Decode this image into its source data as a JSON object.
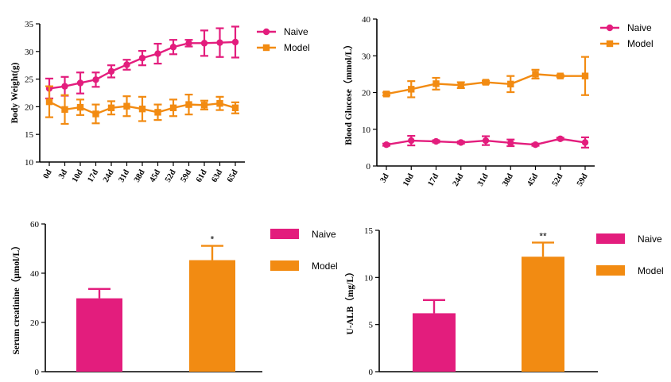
{
  "colors": {
    "naive": "#e31d7d",
    "model": "#f28b12"
  },
  "chart_data": [
    {
      "id": "body-weight",
      "type": "line",
      "title": "",
      "xlabel": "",
      "ylabel": "Body Weight(g)",
      "ylim": [
        10,
        35
      ],
      "yticks": [
        10,
        15,
        20,
        25,
        30,
        35
      ],
      "categories": [
        "0d",
        "3d",
        "10d",
        "17d",
        "24d",
        "31d",
        "38d",
        "45d",
        "52d",
        "59d",
        "61d",
        "63d",
        "65d"
      ],
      "series": [
        {
          "name": "Naive",
          "marker": "circle",
          "values": [
            23.3,
            23.7,
            24.3,
            24.9,
            26.4,
            27.6,
            28.8,
            29.6,
            30.8,
            31.5,
            31.5,
            31.6,
            31.7
          ],
          "errors": [
            1.8,
            1.7,
            1.9,
            1.3,
            1.1,
            0.9,
            1.3,
            1.8,
            1.3,
            0.6,
            2.3,
            2.6,
            2.8
          ]
        },
        {
          "name": "Model",
          "marker": "square",
          "values": [
            20.9,
            19.5,
            19.9,
            18.7,
            19.8,
            20.1,
            19.6,
            19.0,
            19.8,
            20.4,
            20.3,
            20.6,
            19.8
          ],
          "errors": [
            2.8,
            2.6,
            1.4,
            1.7,
            1.2,
            1.8,
            2.2,
            1.4,
            1.5,
            1.8,
            0.8,
            1.2,
            1.0
          ]
        }
      ],
      "legend": "top-right"
    },
    {
      "id": "blood-glucose",
      "type": "line",
      "title": "",
      "xlabel": "",
      "ylabel": "Blood Glucose（mmol/L）",
      "ylim": [
        0,
        40
      ],
      "yticks": [
        0,
        10,
        20,
        30,
        40
      ],
      "categories": [
        "3d",
        "10d",
        "17d",
        "24d",
        "31d",
        "38d",
        "45d",
        "52d",
        "59d"
      ],
      "series": [
        {
          "name": "Naive",
          "marker": "circle",
          "values": [
            5.8,
            6.9,
            6.7,
            6.4,
            6.9,
            6.3,
            5.8,
            7.4,
            6.4
          ],
          "errors": [
            0.3,
            1.3,
            0.3,
            0.3,
            1.2,
            0.9,
            0.3,
            0.3,
            1.4
          ]
        },
        {
          "name": "Model",
          "marker": "square",
          "values": [
            19.6,
            20.9,
            22.4,
            22.0,
            22.8,
            22.3,
            25.0,
            24.5,
            24.5
          ],
          "errors": [
            0.4,
            2.2,
            1.6,
            0.8,
            0.4,
            2.2,
            1.2,
            0.3,
            5.2
          ]
        }
      ],
      "legend": "top-right"
    },
    {
      "id": "creatinine",
      "type": "bar",
      "title": "",
      "xlabel": "",
      "ylabel": "Serum creatinine（μmol/L）",
      "ylim": [
        0,
        60
      ],
      "yticks": [
        0,
        20,
        40,
        60
      ],
      "categories": [
        "Naive",
        "Model"
      ],
      "values": [
        29.8,
        45.3
      ],
      "errors": [
        3.8,
        5.8
      ],
      "annotations": [
        "",
        "*"
      ],
      "legend": "right"
    },
    {
      "id": "ualb",
      "type": "bar",
      "title": "",
      "xlabel": "",
      "ylabel": "U-ALB（mg/L）",
      "ylim": [
        0,
        15
      ],
      "yticks": [
        0,
        5,
        10,
        15
      ],
      "categories": [
        "Naive",
        "Model"
      ],
      "values": [
        6.2,
        12.2
      ],
      "errors": [
        1.4,
        1.5
      ],
      "annotations": [
        "",
        "**"
      ],
      "legend": "right"
    }
  ]
}
